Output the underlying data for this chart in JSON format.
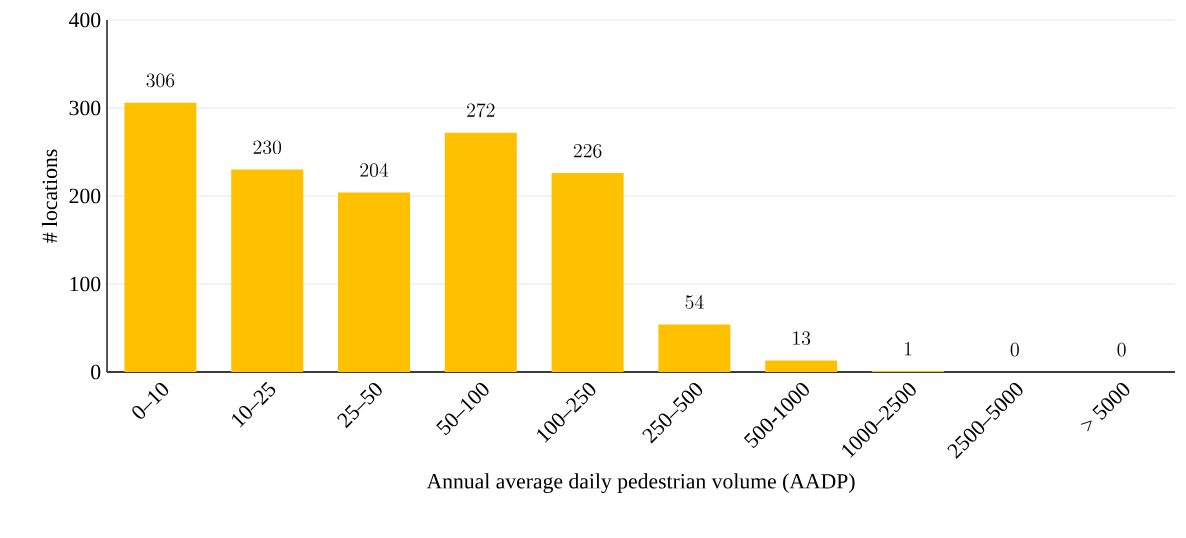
{
  "chart_data": {
    "type": "bar",
    "xlabel": "Annual average daily pedestrian volume (AADP)",
    "ylabel": "# locations",
    "categories": [
      "0–10",
      "10–25",
      "25–50",
      "50–100",
      "100–250",
      "250–500",
      "500-1000",
      "1000–2500",
      "2500–5000",
      "> 5000"
    ],
    "values": [
      306,
      230,
      204,
      272,
      226,
      54,
      13,
      1,
      0,
      0
    ],
    "color": "#ffc000",
    "ylim": [
      0,
      400
    ],
    "yticks": [
      0,
      100,
      200,
      300,
      400
    ],
    "grid": "y",
    "data_labels": true
  }
}
